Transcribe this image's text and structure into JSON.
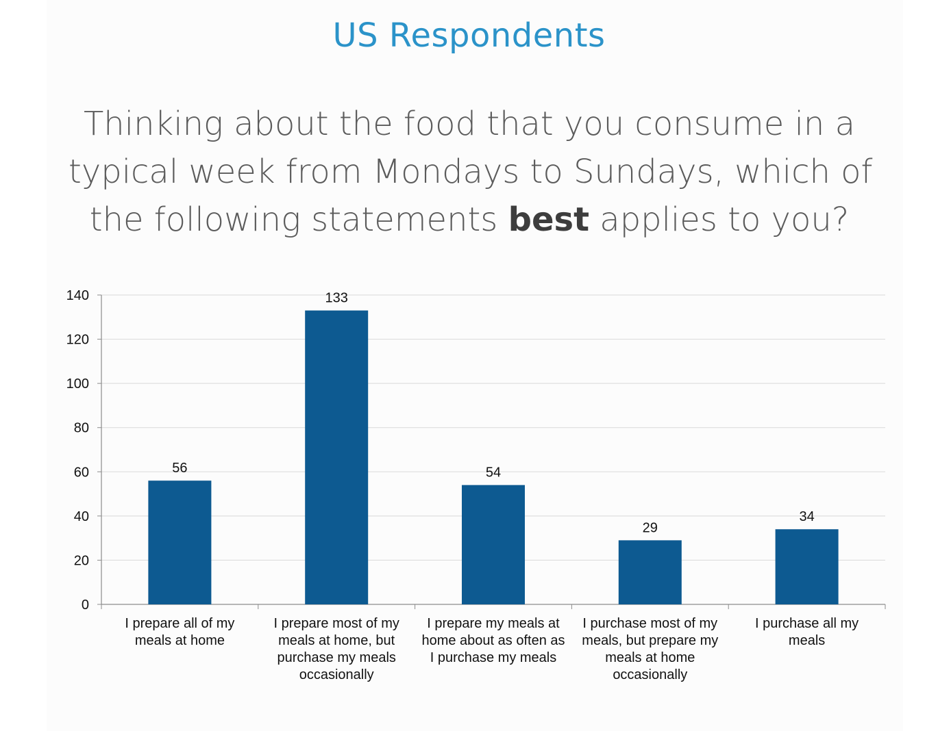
{
  "header": {
    "title": "US Respondents"
  },
  "question": {
    "line1": "Thinking about the food that you consume in a",
    "line2": "typical week from Mondays to Sundays, which of",
    "line3_before": "the following statements ",
    "line3_bold": "best",
    "line3_after": " applies to you?"
  },
  "colors": {
    "bar": "#0d5a91",
    "title": "#2b93c9",
    "grid": "#d9d9d9",
    "axis": "#8c8c8c"
  },
  "chart_data": {
    "type": "bar",
    "categories": [
      [
        "I prepare all of my",
        "meals at home"
      ],
      [
        "I prepare most of my",
        "meals at home, but",
        "purchase my meals",
        "occasionally"
      ],
      [
        "I prepare my meals at",
        "home about as often as",
        "I purchase my meals"
      ],
      [
        "I purchase most of my",
        "meals, but prepare my",
        "meals at home",
        "occasionally"
      ],
      [
        "I purchase all my",
        "meals"
      ]
    ],
    "values": [
      56,
      133,
      54,
      29,
      34
    ],
    "ylim": [
      0,
      140
    ],
    "yticks": [
      0,
      20,
      40,
      60,
      80,
      100,
      120,
      140
    ],
    "grid": true,
    "data_labels": true,
    "legend": "none"
  }
}
